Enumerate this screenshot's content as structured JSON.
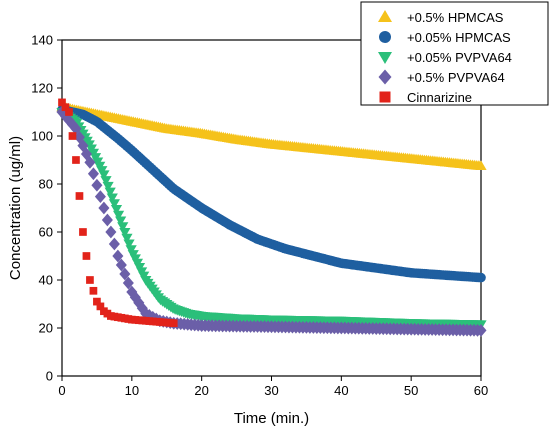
{
  "chart_data": {
    "type": "scatter",
    "xlabel": "Time (min.)",
    "ylabel": "Concentration (ug/ml)",
    "xlim": [
      0,
      60
    ],
    "ylim": [
      0,
      140
    ],
    "xticks": [
      0,
      10,
      20,
      30,
      40,
      50,
      60
    ],
    "yticks": [
      0,
      20,
      40,
      60,
      80,
      100,
      120,
      140
    ],
    "grid": false,
    "legend_position": "top-right",
    "series": [
      {
        "name": "+0.5% HPMCAS",
        "marker": "triangle-up",
        "color": "#F5C21B",
        "x": [
          0,
          5,
          10,
          15,
          20,
          25,
          30,
          35,
          40,
          45,
          50,
          55,
          60
        ],
        "y": [
          112,
          109,
          106,
          103,
          101,
          98.5,
          96.5,
          95,
          93.5,
          92,
          90.5,
          89,
          87.5
        ]
      },
      {
        "name": "+0.05% HPMCAS",
        "marker": "circle",
        "color": "#1F5FA0",
        "x": [
          0,
          3,
          5,
          8,
          10,
          13,
          16,
          20,
          24,
          28,
          32,
          36,
          40,
          45,
          50,
          55,
          60
        ],
        "y": [
          111,
          109,
          106,
          99,
          94,
          86,
          78,
          70,
          63,
          57,
          53,
          50,
          47,
          45,
          43,
          42,
          41
        ]
      },
      {
        "name": "+0.05% PVPVA64",
        "marker": "triangle-down",
        "color": "#2BBF7A",
        "x": [
          0,
          2,
          4,
          6,
          8,
          10,
          12,
          14,
          16,
          18,
          20,
          25,
          30,
          40,
          50,
          60
        ],
        "y": [
          110,
          106,
          96,
          84,
          68,
          52,
          40,
          32,
          28,
          26,
          25,
          24,
          23.5,
          23,
          22,
          21.5
        ]
      },
      {
        "name": "+0.5% PVPVA64",
        "marker": "diamond",
        "color": "#6B5FA8",
        "x": [
          0,
          2,
          4,
          6,
          8,
          10,
          12,
          14,
          16,
          18,
          20,
          30,
          40,
          50,
          60
        ],
        "y": [
          110,
          103,
          89,
          70,
          50,
          35,
          26,
          23,
          22,
          21.5,
          21,
          20.5,
          20,
          19.5,
          19
        ]
      },
      {
        "name": "Cinnarizine",
        "marker": "square",
        "color": "#E2231A",
        "x": [
          0,
          1,
          2,
          3,
          4,
          5,
          6,
          7,
          8,
          9,
          10,
          12,
          14,
          16
        ],
        "y": [
          114,
          110,
          90,
          60,
          40,
          31,
          27,
          25,
          24.5,
          24,
          23.5,
          23,
          22.5,
          22
        ]
      }
    ]
  }
}
